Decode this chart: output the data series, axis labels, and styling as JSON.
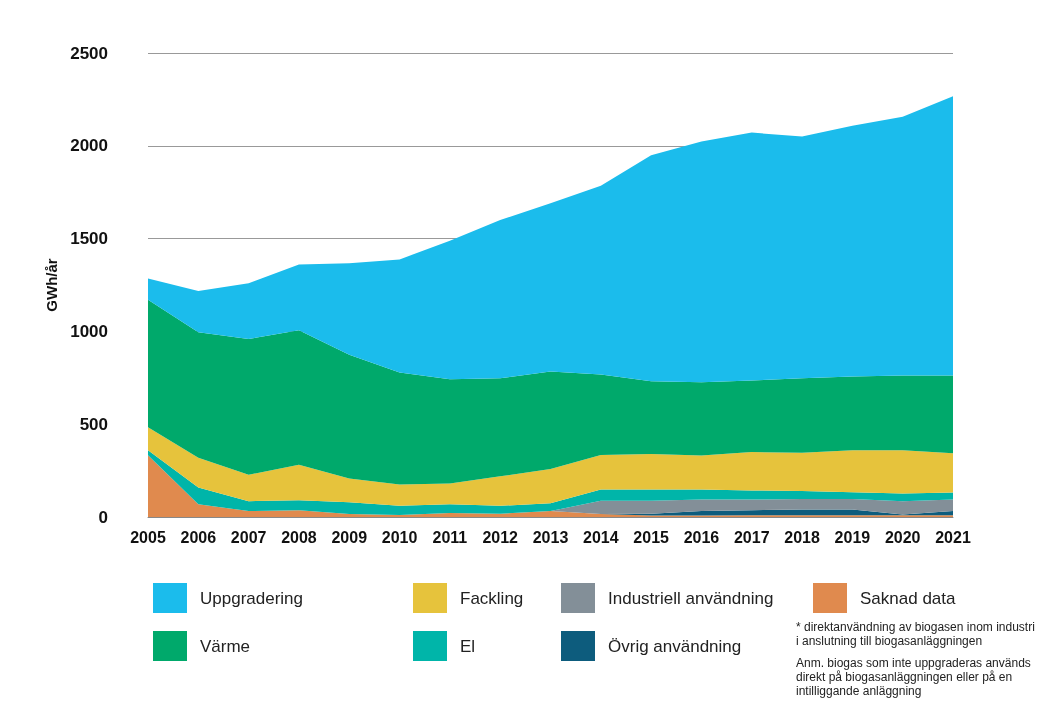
{
  "chart_data": {
    "type": "area",
    "stacked": true,
    "ylabel": "GWh/år",
    "categories": [
      "2005",
      "2006",
      "2007",
      "2008",
      "2009",
      "2010",
      "2011",
      "2012",
      "2013",
      "2014",
      "2015",
      "2016",
      "2017",
      "2018",
      "2019",
      "2020",
      "2021"
    ],
    "series": [
      {
        "name": "Saknad data",
        "color": "#e08a4e",
        "values": [
          333,
          69,
          32,
          37,
          16,
          11,
          21,
          18,
          32,
          16,
          8,
          8,
          10,
          10,
          10,
          10,
          10
        ]
      },
      {
        "name": "Övrig användning",
        "color": "#0d5c7d",
        "values": [
          null,
          null,
          null,
          null,
          null,
          null,
          null,
          null,
          null,
          0,
          10,
          24,
          27,
          30,
          30,
          4,
          22
        ]
      },
      {
        "name": "Industriell användning",
        "color": "#838f98",
        "values": [
          null,
          null,
          null,
          null,
          null,
          null,
          null,
          null,
          0,
          71,
          69,
          62,
          57,
          57,
          57,
          71,
          62
        ]
      },
      {
        "name": "El",
        "color": "#00b5a9",
        "values": [
          27,
          90,
          53,
          53,
          63,
          49,
          48,
          42,
          42,
          61,
          61,
          54,
          49,
          43,
          37,
          42,
          38
        ]
      },
      {
        "name": "Fackling",
        "color": "#e6c33c",
        "values": [
          124,
          160,
          143,
          191,
          128,
          115,
          111,
          159,
          185,
          186,
          191,
          184,
          207,
          206,
          226,
          233,
          212
        ]
      },
      {
        "name": "Värme",
        "color": "#00a96b",
        "values": [
          686,
          677,
          731,
          725,
          667,
          604,
          562,
          528,
          525,
          434,
          392,
          394,
          386,
          401,
          397,
          403,
          419
        ]
      },
      {
        "name": "Uppgradering",
        "color": "#1bbcec",
        "values": [
          115,
          222,
          301,
          355,
          493,
          609,
          746,
          853,
          906,
          1017,
          1218,
          1297,
          1335,
          1303,
          1351,
          1393,
          1504
        ]
      }
    ],
    "ylim": [
      0,
      2500
    ],
    "yticks": [
      0,
      500,
      1000,
      1500,
      2000,
      2500
    ],
    "grid": "y",
    "legend": "bottom",
    "annotations": [
      "* direktanvändning av biogasen inom industri i anslutning till biogasanläggningen",
      "Anm. biogas som inte uppgraderas används direkt på biogasanläggningen eller på en intilliggande anläggning"
    ]
  }
}
